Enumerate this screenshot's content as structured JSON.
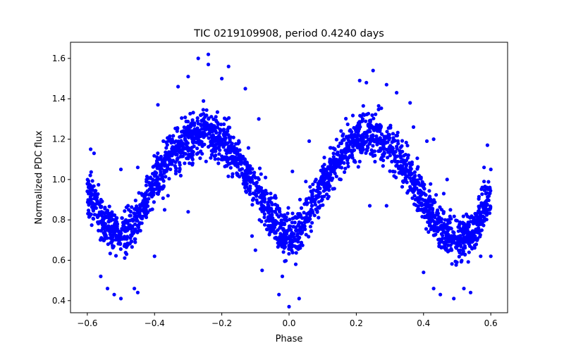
{
  "chart_data": {
    "type": "scatter",
    "title": "TIC 0219109908, period 0.4240 days",
    "xlabel": "Phase",
    "ylabel": "Normalized PDC flux",
    "xlim": [
      -0.65,
      0.65
    ],
    "ylim": [
      0.34,
      1.68
    ],
    "xticks": [
      -0.6,
      -0.4,
      -0.2,
      0.0,
      0.2,
      0.4,
      0.6
    ],
    "xtick_labels": [
      "−0.6",
      "−0.4",
      "−0.2",
      "0.0",
      "0.2",
      "0.4",
      "0.6"
    ],
    "yticks": [
      0.4,
      0.6,
      0.8,
      1.0,
      1.2,
      1.4,
      1.6
    ],
    "ytick_labels": [
      "0.4",
      "0.6",
      "0.8",
      "1.0",
      "1.2",
      "1.4",
      "1.6"
    ],
    "grid": false,
    "legend": "none",
    "marker_color": "#0000ff",
    "series": [
      {
        "x_range": [
          -0.6,
          0.6
        ],
        "trend": [
          [
            -0.6,
            0.95
          ],
          [
            -0.55,
            0.78
          ],
          [
            -0.5,
            0.72
          ],
          [
            -0.45,
            0.8
          ],
          [
            -0.4,
            0.98
          ],
          [
            -0.35,
            1.12
          ],
          [
            -0.3,
            1.2
          ],
          [
            -0.25,
            1.23
          ],
          [
            -0.2,
            1.2
          ],
          [
            -0.15,
            1.1
          ],
          [
            -0.1,
            0.96
          ],
          [
            -0.05,
            0.8
          ],
          [
            0.0,
            0.7
          ],
          [
            0.05,
            0.8
          ],
          [
            0.1,
            0.98
          ],
          [
            0.15,
            1.12
          ],
          [
            0.2,
            1.2
          ],
          [
            0.25,
            1.22
          ],
          [
            0.3,
            1.18
          ],
          [
            0.35,
            1.05
          ],
          [
            0.4,
            0.9
          ],
          [
            0.45,
            0.76
          ],
          [
            0.5,
            0.7
          ],
          [
            0.55,
            0.75
          ],
          [
            0.6,
            0.92
          ]
        ],
        "outliers": [
          [
            -0.27,
            1.6
          ],
          [
            -0.24,
            1.62
          ],
          [
            -0.24,
            1.57
          ],
          [
            -0.18,
            1.56
          ],
          [
            -0.2,
            1.5
          ],
          [
            -0.3,
            1.51
          ],
          [
            -0.33,
            1.46
          ],
          [
            -0.13,
            1.45
          ],
          [
            -0.09,
            1.3
          ],
          [
            -0.39,
            1.37
          ],
          [
            0.25,
            1.54
          ],
          [
            0.21,
            1.49
          ],
          [
            0.23,
            1.48
          ],
          [
            0.29,
            1.47
          ],
          [
            0.32,
            1.43
          ],
          [
            0.36,
            1.38
          ],
          [
            0.37,
            1.26
          ],
          [
            0.43,
            1.2
          ],
          [
            0.41,
            1.19
          ],
          [
            0.06,
            1.19
          ],
          [
            -0.59,
            1.15
          ],
          [
            -0.58,
            1.13
          ],
          [
            0.59,
            1.17
          ],
          [
            0.6,
            1.05
          ],
          [
            0.58,
            1.06
          ],
          [
            -0.5,
            1.05
          ],
          [
            -0.45,
            1.06
          ],
          [
            -0.43,
            0.87
          ],
          [
            -0.36,
            0.92
          ],
          [
            -0.37,
            0.85
          ],
          [
            -0.3,
            0.84
          ],
          [
            -0.21,
            1.08
          ],
          [
            -0.19,
            1.1
          ],
          [
            -0.13,
            1.0
          ],
          [
            -0.07,
            1.01
          ],
          [
            0.01,
            1.04
          ],
          [
            0.05,
            0.99
          ],
          [
            0.08,
            1.0
          ],
          [
            0.12,
            1.0
          ],
          [
            0.14,
            1.06
          ],
          [
            0.24,
            0.87
          ],
          [
            0.29,
            0.87
          ],
          [
            0.34,
            1.03
          ],
          [
            0.47,
            1.0
          ],
          [
            0.46,
            0.93
          ],
          [
            0.48,
            0.85
          ],
          [
            0.58,
            0.99
          ],
          [
            -0.11,
            0.72
          ],
          [
            -0.1,
            0.65
          ],
          [
            -0.08,
            0.55
          ],
          [
            -0.56,
            0.52
          ],
          [
            -0.54,
            0.46
          ],
          [
            -0.52,
            0.43
          ],
          [
            -0.5,
            0.41
          ],
          [
            -0.46,
            0.46
          ],
          [
            -0.45,
            0.44
          ],
          [
            -0.4,
            0.62
          ],
          [
            -0.03,
            0.43
          ],
          [
            0.0,
            0.37
          ],
          [
            -0.02,
            0.52
          ],
          [
            0.03,
            0.41
          ],
          [
            0.02,
            0.58
          ],
          [
            0.4,
            0.54
          ],
          [
            0.43,
            0.46
          ],
          [
            0.45,
            0.43
          ],
          [
            0.49,
            0.41
          ],
          [
            0.52,
            0.46
          ],
          [
            0.54,
            0.44
          ],
          [
            0.57,
            0.62
          ],
          [
            0.6,
            0.62
          ]
        ]
      }
    ]
  }
}
